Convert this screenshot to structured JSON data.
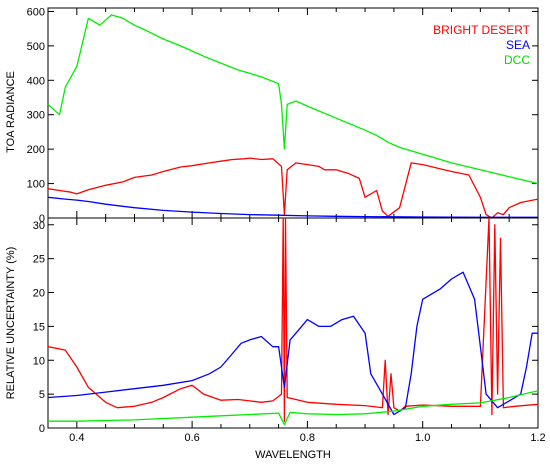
{
  "chart_data": [
    {
      "type": "line",
      "ylabel": "TOA RADIANCE",
      "xlim": [
        0.35,
        1.2
      ],
      "ylim": [
        0,
        610
      ],
      "yticks": [
        0,
        100,
        200,
        300,
        400,
        500,
        600
      ],
      "legend_position": "top-right",
      "series": [
        {
          "name": "BRIGHT DESERT",
          "color": "#ff0000",
          "x": [
            0.35,
            0.37,
            0.39,
            0.4,
            0.42,
            0.45,
            0.48,
            0.5,
            0.53,
            0.55,
            0.58,
            0.6,
            0.63,
            0.65,
            0.67,
            0.69,
            0.7,
            0.72,
            0.74,
            0.755,
            0.76,
            0.765,
            0.78,
            0.8,
            0.82,
            0.83,
            0.85,
            0.87,
            0.89,
            0.9,
            0.92,
            0.93,
            0.94,
            0.96,
            0.98,
            1.0,
            1.05,
            1.08,
            1.1,
            1.11,
            1.12,
            1.13,
            1.14,
            1.15,
            1.17,
            1.2
          ],
          "y": [
            85,
            80,
            75,
            70,
            82,
            95,
            105,
            118,
            125,
            135,
            148,
            152,
            160,
            165,
            170,
            172,
            174,
            170,
            172,
            150,
            10,
            140,
            160,
            155,
            150,
            140,
            140,
            130,
            115,
            60,
            80,
            20,
            5,
            30,
            160,
            155,
            135,
            125,
            60,
            10,
            0,
            15,
            10,
            30,
            45,
            55
          ]
        },
        {
          "name": "SEA",
          "color": "#0000ff",
          "x": [
            0.35,
            0.38,
            0.4,
            0.42,
            0.45,
            0.5,
            0.55,
            0.6,
            0.65,
            0.7,
            0.75,
            0.8,
            0.85,
            0.9,
            1.0,
            1.1,
            1.2
          ],
          "y": [
            60,
            55,
            52,
            48,
            40,
            30,
            22,
            17,
            13,
            10,
            8,
            6,
            5,
            4,
            3,
            2,
            2
          ]
        },
        {
          "name": "DCC",
          "color": "#00ee00",
          "x": [
            0.35,
            0.37,
            0.38,
            0.4,
            0.42,
            0.44,
            0.46,
            0.48,
            0.5,
            0.52,
            0.55,
            0.58,
            0.6,
            0.62,
            0.65,
            0.68,
            0.7,
            0.72,
            0.75,
            0.755,
            0.76,
            0.765,
            0.78,
            0.8,
            0.85,
            0.9,
            0.92,
            0.94,
            0.96,
            1.0,
            1.05,
            1.1,
            1.15,
            1.2
          ],
          "y": [
            330,
            300,
            380,
            440,
            580,
            560,
            590,
            580,
            560,
            545,
            520,
            500,
            485,
            470,
            450,
            430,
            420,
            410,
            390,
            330,
            200,
            330,
            340,
            325,
            290,
            255,
            240,
            220,
            205,
            185,
            160,
            140,
            120,
            100
          ]
        }
      ]
    },
    {
      "type": "line",
      "xlabel": "WAVELENGTH",
      "ylabel": "RELATIVE UNCERTAINTY (%)",
      "xlim": [
        0.35,
        1.2
      ],
      "ylim": [
        0,
        31
      ],
      "xticks": [
        0.4,
        0.6,
        0.8,
        1.0,
        1.2
      ],
      "yticks": [
        0,
        5,
        10,
        15,
        20,
        25,
        30
      ],
      "series": [
        {
          "name": "BRIGHT DESERT",
          "color": "#ff0000",
          "x": [
            0.35,
            0.38,
            0.4,
            0.42,
            0.45,
            0.47,
            0.5,
            0.53,
            0.55,
            0.58,
            0.6,
            0.62,
            0.65,
            0.68,
            0.7,
            0.72,
            0.74,
            0.755,
            0.758,
            0.76,
            0.762,
            0.765,
            0.78,
            0.8,
            0.85,
            0.9,
            0.93,
            0.935,
            0.94,
            0.945,
            0.95,
            0.96,
            0.97,
            1.0,
            1.05,
            1.1,
            1.115,
            1.12,
            1.125,
            1.13,
            1.135,
            1.14,
            1.16,
            1.2
          ],
          "y": [
            12,
            11.5,
            9,
            6,
            3.8,
            3,
            3.2,
            3.8,
            4.5,
            5.8,
            6.3,
            5,
            4.1,
            4.2,
            4,
            3.8,
            4,
            5,
            31,
            1,
            31,
            4.5,
            4.2,
            3.8,
            3.5,
            3.3,
            3,
            10,
            2,
            8,
            3,
            2.5,
            3.2,
            3.4,
            3.2,
            3.2,
            31,
            2,
            30,
            5,
            28,
            3,
            3.2,
            3.5
          ]
        },
        {
          "name": "SEA",
          "color": "#0000ff",
          "x": [
            0.35,
            0.4,
            0.45,
            0.5,
            0.55,
            0.6,
            0.63,
            0.65,
            0.67,
            0.685,
            0.7,
            0.72,
            0.74,
            0.75,
            0.76,
            0.77,
            0.78,
            0.8,
            0.82,
            0.84,
            0.86,
            0.88,
            0.9,
            0.91,
            0.93,
            0.95,
            0.97,
            0.98,
            0.99,
            1.0,
            1.03,
            1.05,
            1.07,
            1.09,
            1.1,
            1.11,
            1.13,
            1.15,
            1.17,
            1.18,
            1.19,
            1.2
          ],
          "y": [
            4.5,
            4.8,
            5.3,
            5.8,
            6.3,
            7,
            8,
            9,
            11,
            12.5,
            13,
            13.5,
            12,
            12,
            6,
            13,
            14,
            16,
            15,
            15,
            16,
            16.5,
            14,
            8,
            5,
            2,
            3,
            8,
            15,
            19,
            20.5,
            22,
            23,
            19,
            12,
            5,
            3,
            4,
            5,
            9,
            14,
            14
          ]
        },
        {
          "name": "DCC",
          "color": "#00ee00",
          "x": [
            0.35,
            0.4,
            0.45,
            0.5,
            0.55,
            0.6,
            0.65,
            0.7,
            0.75,
            0.76,
            0.77,
            0.8,
            0.85,
            0.9,
            0.95,
            1.0,
            1.05,
            1.1,
            1.15,
            1.2
          ],
          "y": [
            1,
            1,
            1.1,
            1.2,
            1.4,
            1.6,
            1.8,
            2,
            2.2,
            0.5,
            2.3,
            2.1,
            2,
            2.1,
            2.5,
            3.2,
            3.5,
            3.7,
            4.5,
            5.5
          ]
        }
      ]
    }
  ]
}
